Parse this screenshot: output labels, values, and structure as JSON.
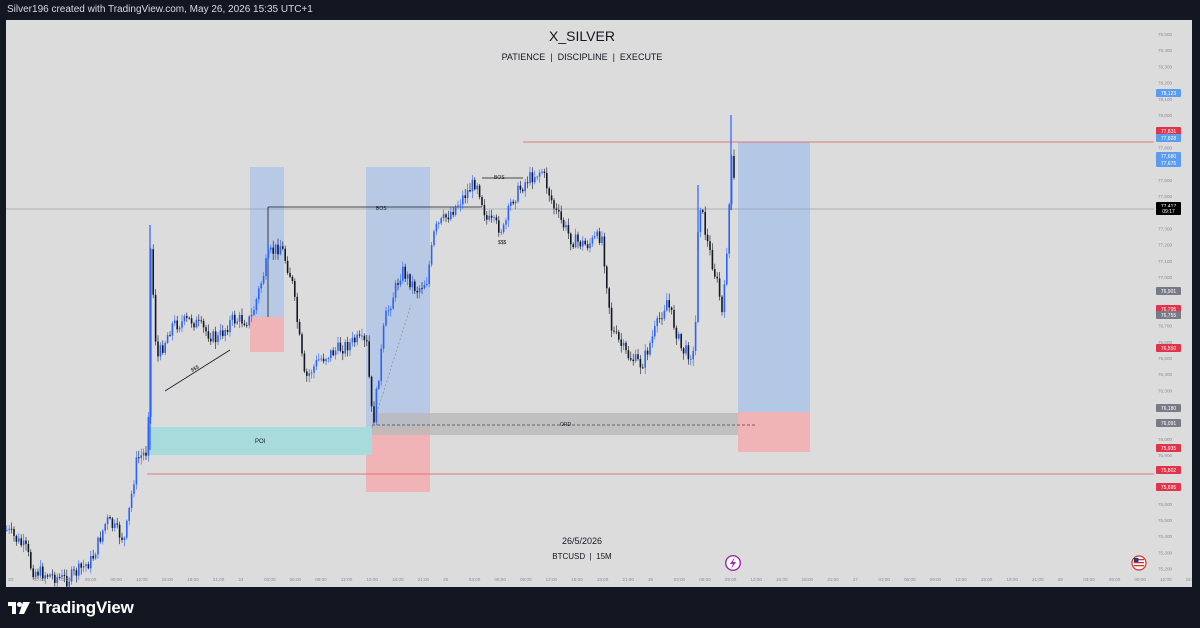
{
  "header": {
    "credit": "Silver196 created with TradingView.com, May 26, 2026 15:35 UTC+1"
  },
  "chart": {
    "title": "X_SILVER",
    "subtitle": "PATIENCE  |  DISCIPLINE  |  EXECUTE",
    "date_label": "26/5/2026",
    "symbol_label": "BTCUSD  |  15M",
    "annotations": {
      "bos_main": "BOS",
      "bos_second": "BOS",
      "ssl_left": "$$$",
      "ssl_right": "$$$",
      "poi": "POI",
      "ord": "ORD"
    },
    "colors": {
      "up": "#2962ff",
      "down": "#131722",
      "background": "#dcdcdc",
      "long_target_zone": "#a6c1e8",
      "stop_zone": "#f0b4b6",
      "poi_zone": "#a8dcdc",
      "ord_zone": "#b9b9b9",
      "level_line": "#e05a5a"
    }
  },
  "price_axis": {
    "ticks": [
      "78,500",
      "78,400",
      "78,300",
      "78,200",
      "78,100",
      "78,000",
      "77,900",
      "77,800",
      "77,700",
      "77,600",
      "77,500",
      "77,400",
      "77,300",
      "77,200",
      "77,100",
      "77,000",
      "76,900",
      "76,800",
      "76,700",
      "76,600",
      "76,500",
      "76,400",
      "76,300",
      "76,200",
      "76,100",
      "76,000",
      "75,900",
      "75,800",
      "75,700",
      "75,600",
      "75,500",
      "75,400",
      "75,300",
      "75,200"
    ],
    "badges": [
      {
        "value": "78,123",
        "color": "#5b9cf0"
      },
      {
        "value": "77,831",
        "color": "#e0344a"
      },
      {
        "value": "77,828",
        "color": "#5b9cf0"
      },
      {
        "value": "77,680",
        "color": "#5b9cf0"
      },
      {
        "value": "77,675",
        "color": "#5b9cf0"
      },
      {
        "value": "77,417",
        "color": "#000000"
      },
      {
        "value": "09:17",
        "color": "#000000"
      },
      {
        "value": "76,901",
        "color": "#787b86"
      },
      {
        "value": "76,795",
        "color": "#e0344a"
      },
      {
        "value": "76,755",
        "color": "#787b86"
      },
      {
        "value": "76,550",
        "color": "#e0344a"
      },
      {
        "value": "76,180",
        "color": "#787b86"
      },
      {
        "value": "76,091",
        "color": "#787b86"
      },
      {
        "value": "75,935",
        "color": "#e0344a"
      },
      {
        "value": "75,802",
        "color": "#e0344a"
      },
      {
        "value": "75,695",
        "color": "#e0344a"
      }
    ]
  },
  "time_axis": {
    "ticks": [
      "20:",
      "00:00",
      "03:00",
      "06:00",
      "09:00",
      "12:00",
      "15:00",
      "18:00",
      "21:00",
      "24",
      "03:00",
      "06:00",
      "09:00",
      "12:00",
      "15:00",
      "18:00",
      "21:00",
      "25",
      "03:00",
      "06:00",
      "09:00",
      "12:00",
      "15:00",
      "18:00",
      "21:00",
      "26",
      "03:00",
      "06:00",
      "09:00",
      "12:00",
      "15:00",
      "18:00",
      "21:00",
      "27",
      "03:00",
      "06:00",
      "09:00",
      "12:00",
      "15:00",
      "18:00",
      "21:00",
      "28",
      "03:00",
      "06:00",
      "09:00",
      "12:00",
      "15:0"
    ]
  },
  "footer": {
    "brand": "TradingView"
  }
}
